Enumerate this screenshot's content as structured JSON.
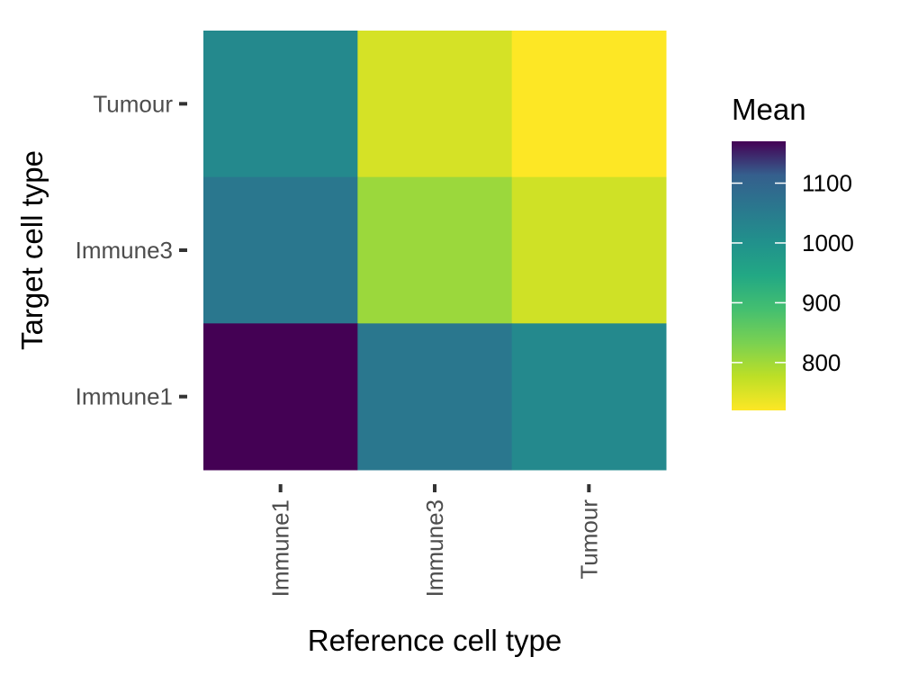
{
  "chart_data": {
    "type": "heatmap",
    "title": "",
    "xlabel": "Reference cell type",
    "ylabel": "Target cell type",
    "x_categories": [
      "Immune1",
      "Immune3",
      "Tumour"
    ],
    "y_categories": [
      "Immune1",
      "Immune3",
      "Tumour"
    ],
    "cells": [
      {
        "x": "Immune1",
        "y": "Tumour",
        "value": 1020
      },
      {
        "x": "Immune3",
        "y": "Tumour",
        "value": 755
      },
      {
        "x": "Tumour",
        "y": "Tumour",
        "value": 720
      },
      {
        "x": "Immune1",
        "y": "Immune3",
        "value": 1060
      },
      {
        "x": "Immune3",
        "y": "Immune3",
        "value": 805
      },
      {
        "x": "Tumour",
        "y": "Immune3",
        "value": 760
      },
      {
        "x": "Immune1",
        "y": "Immune1",
        "value": 1170
      },
      {
        "x": "Immune3",
        "y": "Immune1",
        "value": 1060
      },
      {
        "x": "Tumour",
        "y": "Immune1",
        "value": 1020
      }
    ],
    "legend": {
      "title": "Mean",
      "position": "right",
      "range": [
        720,
        1170
      ],
      "breaks": [
        1100,
        1000,
        900,
        800
      ],
      "break_labels": [
        "1100",
        "1000",
        "900",
        "800"
      ],
      "colormap": "viridis"
    }
  }
}
